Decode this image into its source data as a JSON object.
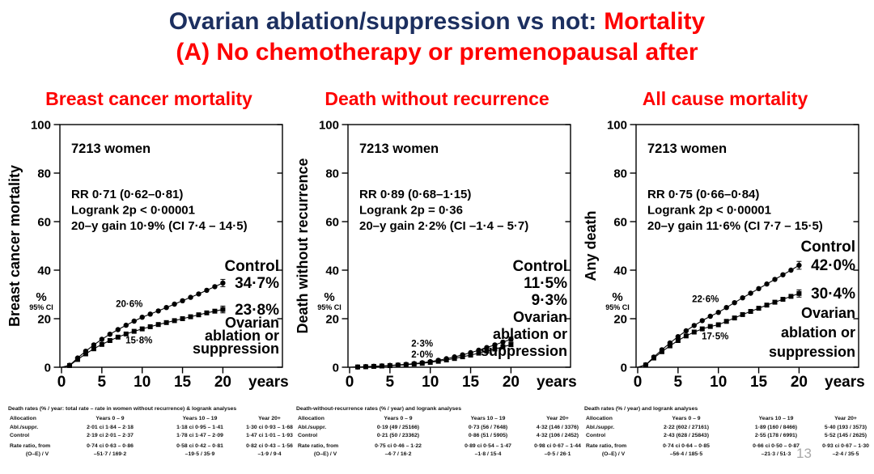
{
  "title": {
    "line1_dark": "Ovarian ablation/suppression vs not:",
    "line1_red": "Mortality",
    "line2": "(A) No chemotherapy or premenopausal after"
  },
  "page_number": "13",
  "colors": {
    "navy": "#1c2f5f",
    "red": "#fe0000",
    "black": "#000000",
    "page_gray": "#a9a9a9"
  },
  "panels": [
    {
      "subtitle": "Breast cancer mortality",
      "table": {
        "caption": "Death rates (% / year: total rate – rate in women without recurrence) & logrank analyses",
        "col_headers": [
          "Allocation",
          "Years 0 – 9",
          "Years 10 – 19",
          "Year 20+"
        ],
        "rows": [
          [
            "Abl./suppr.",
            "2·01 ci 1·84 – 2·18",
            "1·18 ci 0·95 – 1·41",
            "1·30 ci 0·93 – 1·68"
          ],
          [
            "Control",
            "2·19 ci 2·01 – 2·37",
            "1·78 ci 1·47 – 2·09",
            "1·47 ci 1·01 – 1·93"
          ],
          [
            "Rate ratio, from",
            "0·74 ci 0·63 – 0·86",
            "0·58 ci 0·42 – 0·81",
            "0·82 ci 0·43 – 1·56"
          ],
          [
            "(O–E) / V",
            "–51·7 / 169·2",
            "–19·5 / 35·9",
            "–1·9 / 9·4"
          ]
        ]
      }
    },
    {
      "subtitle": "Death without recurrence",
      "table": {
        "caption": "Death-without-recurrence rates (% / year) and logrank analyses",
        "col_headers": [
          "Allocation",
          "Years 0 – 9",
          "Years 10 – 19",
          "Year 20+"
        ],
        "rows": [
          [
            "Abl./suppr.",
            "0·19 (49 / 25166)",
            "0·73 (56 / 7648)",
            "4·32 (146 / 3376)"
          ],
          [
            "Control",
            "0·21 (50 / 23362)",
            "0·86 (51 / 5905)",
            "4·32 (106 / 2452)"
          ],
          [
            "Rate ratio, from",
            "0·75 ci 0·46 – 1·22",
            "0·89 ci 0·54 – 1·47",
            "0·98 ci 0·67 – 1·44"
          ],
          [
            "(O–E) / V",
            "–4·7 / 16·2",
            "–1·8 / 15·4",
            "–0·5 / 26·1"
          ]
        ]
      }
    },
    {
      "subtitle": "All cause mortality",
      "table": {
        "caption": "Death rates (% / year) and logrank analyses",
        "col_headers": [
          "Allocation",
          "Years 0 – 9",
          "Years 10 – 19",
          "Year 20+"
        ],
        "rows": [
          [
            "Abl./suppr.",
            "2·22 (602 / 27161)",
            "1·89 (160 / 8466)",
            "5·40 (193 / 3573)"
          ],
          [
            "Control",
            "2·43 (628 / 25843)",
            "2·55 (178 / 6991)",
            "5·52 (145 / 2625)"
          ],
          [
            "Rate ratio, from",
            "0·74 ci 0·64 – 0·85",
            "0·66 ci 0·50 – 0·87",
            "0·93 ci 0·67 – 1·30"
          ],
          [
            "(O–E) / V",
            "–56·4 / 185·5",
            "–21·3 / 51·3",
            "–2·4 / 35·5"
          ]
        ]
      }
    }
  ],
  "chart_data": [
    {
      "type": "line",
      "title": "Breast cancer mortality",
      "ylabel": "Breast cancer mortality",
      "xlabel": "years",
      "pct_label": "%",
      "ci_label": "95% CI",
      "n_label": "7213 women",
      "stats": [
        "RR 0·71 (0·62–0·81)",
        "Logrank 2p < 0·00001",
        "20–y gain 10·9% (CI 7·4 – 14·5)"
      ],
      "xlim": [
        0,
        22
      ],
      "ylim": [
        0,
        100
      ],
      "x_ticks": [
        0,
        5,
        10,
        15,
        20
      ],
      "y_ticks": [
        0,
        20,
        40,
        60,
        80,
        100
      ],
      "x": [
        1,
        2,
        3,
        4,
        5,
        6,
        7,
        8,
        9,
        10,
        11,
        12,
        13,
        14,
        15,
        16,
        17,
        18,
        19,
        20
      ],
      "series": [
        {
          "name": "Control",
          "marker": "circle",
          "final_label": "34·7%",
          "mid_label": "20·6%",
          "values": [
            0.8,
            3.8,
            6.6,
            9.2,
            11.5,
            13.6,
            15.5,
            17.3,
            19.0,
            20.6,
            21.9,
            23.2,
            24.6,
            26.0,
            27.4,
            28.8,
            30.2,
            31.7,
            33.2,
            34.7
          ]
        },
        {
          "name": "Ovarian ablation or suppression",
          "marker": "square",
          "final_label": "23·8%",
          "mid_label": "15·8%",
          "values": [
            0.7,
            3.2,
            5.5,
            7.6,
            9.4,
            11.0,
            12.4,
            13.7,
            14.8,
            15.8,
            16.7,
            17.6,
            18.4,
            19.2,
            20.0,
            20.8,
            21.6,
            22.4,
            23.1,
            23.8
          ]
        }
      ],
      "side_labels": [
        "Control",
        "34·7%",
        "23·8%",
        "Ovarian",
        "ablation or",
        "suppression"
      ]
    },
    {
      "type": "line",
      "title": "Death without recurrence",
      "ylabel": "Death without recurrence",
      "xlabel": "years",
      "pct_label": "%",
      "ci_label": "95% CI",
      "n_label": "7213 women",
      "stats": [
        "RR 0·89 (0·68–1·15)",
        "Logrank 2p = 0·36",
        "20–y gain 2·2% (CI –1·4 – 5·7)"
      ],
      "xlim": [
        0,
        22
      ],
      "ylim": [
        0,
        100
      ],
      "x_ticks": [
        0,
        5,
        10,
        15,
        20
      ],
      "y_ticks": [
        0,
        20,
        40,
        60,
        80,
        100
      ],
      "x": [
        1,
        2,
        3,
        4,
        5,
        6,
        7,
        8,
        9,
        10,
        11,
        12,
        13,
        14,
        15,
        16,
        17,
        18,
        19,
        20
      ],
      "series": [
        {
          "name": "Control",
          "marker": "circle",
          "final_label": "11·5%",
          "mid_label": "2·3%",
          "values": [
            0.1,
            0.25,
            0.4,
            0.55,
            0.75,
            0.95,
            1.2,
            1.5,
            1.85,
            2.3,
            2.85,
            3.5,
            4.25,
            5.1,
            6.0,
            7.0,
            8.1,
            9.2,
            10.35,
            11.5
          ]
        },
        {
          "name": "Ovarian ablation or suppression",
          "marker": "square",
          "final_label": "9·3%",
          "mid_label": "2·0%",
          "values": [
            0.1,
            0.2,
            0.35,
            0.5,
            0.65,
            0.85,
            1.05,
            1.3,
            1.6,
            2.0,
            2.45,
            3.0,
            3.6,
            4.3,
            5.0,
            5.8,
            6.6,
            7.5,
            8.4,
            9.3
          ]
        }
      ],
      "side_labels": [
        "Control",
        "11·5%",
        "9·3%",
        "Ovarian",
        "ablation or",
        "suppression"
      ]
    },
    {
      "type": "line",
      "title": "All cause mortality",
      "ylabel": "Any death",
      "xlabel": "years",
      "pct_label": "%",
      "ci_label": "95% CI",
      "n_label": "7213 women",
      "stats": [
        "RR 0·75 (0·66–0·84)",
        "Logrank 2p < 0·00001",
        "20–y gain 11·6% (CI 7·7 – 15·5)"
      ],
      "xlim": [
        0,
        22
      ],
      "ylim": [
        0,
        100
      ],
      "x_ticks": [
        0,
        5,
        10,
        15,
        20
      ],
      "y_ticks": [
        0,
        20,
        40,
        60,
        80,
        100
      ],
      "x": [
        1,
        2,
        3,
        4,
        5,
        6,
        7,
        8,
        9,
        10,
        11,
        12,
        13,
        14,
        15,
        16,
        17,
        18,
        19,
        20
      ],
      "series": [
        {
          "name": "Control",
          "marker": "circle",
          "final_label": "42·0%",
          "mid_label": "22·6%",
          "values": [
            1.0,
            4.2,
            7.2,
            10.0,
            12.6,
            15.0,
            17.2,
            19.2,
            21.0,
            22.6,
            24.6,
            26.6,
            28.6,
            30.5,
            32.4,
            34.3,
            36.2,
            38.1,
            40.0,
            42.0
          ]
        },
        {
          "name": "Ovarian ablation or suppression",
          "marker": "square",
          "final_label": "30·4%",
          "mid_label": "17·5%",
          "values": [
            0.9,
            3.8,
            6.4,
            8.8,
            11.0,
            12.9,
            14.5,
            15.8,
            16.8,
            17.5,
            18.9,
            20.3,
            21.7,
            23.0,
            24.3,
            25.6,
            26.8,
            28.0,
            29.2,
            30.4
          ]
        }
      ],
      "side_labels": [
        "Control",
        "42·0%",
        "30·4%",
        "Ovarian",
        "ablation or",
        "suppression"
      ]
    }
  ]
}
